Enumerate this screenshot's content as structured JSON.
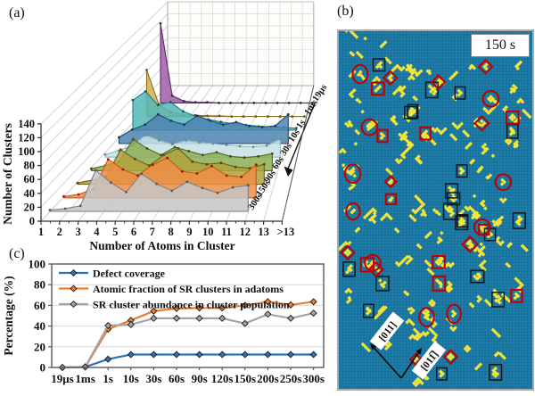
{
  "figure": {
    "panel_a_label": "(a)",
    "panel_b_label": "(b)",
    "panel_c_label": "(c)",
    "panel_b": {
      "time_label": "150 s",
      "direction_left": "[011]",
      "direction_right": "[011̅]",
      "colors": {
        "background": "#1B79A4",
        "texture_dark": "#15618B",
        "texture_light": "#2187B2",
        "adatom_yellow": "#F5E636",
        "annotation_black": "#151515",
        "annotation_red": "#C00000",
        "border_gray": "#ABABAB"
      },
      "annotations": {
        "black_rect_count": 21,
        "red_shape_count": 30
      },
      "free_cluster_count": 150,
      "seed": 20
    }
  },
  "chart_data": [
    {
      "type": "area",
      "subtype": "3d-waterfall",
      "title": "",
      "xlabel": "Number of Atoms in Cluster",
      "ylabel": "Number of Clusters",
      "x_ticks": [
        "1",
        "2",
        "3",
        "4",
        "5",
        "6",
        "7",
        "8",
        "9",
        "10",
        "11",
        "12",
        "13",
        ">13"
      ],
      "y_ticks": [
        0,
        20,
        40,
        60,
        80,
        100,
        120,
        140
      ],
      "ylim": [
        0,
        150
      ],
      "depth_order": "back-to-front",
      "series": [
        {
          "name": "19μs",
          "fill": "#9E5FA7",
          "stroke": "#5E2A66",
          "marker": "#4A2152",
          "values": [
            132,
            12,
            3,
            1,
            1,
            0,
            0,
            0,
            0,
            0,
            0,
            0,
            0,
            0
          ]
        },
        {
          "name": "1ms",
          "fill": "#D2B04C",
          "stroke": "#8A6D1F",
          "marker": "#6E5714",
          "values": [
            76,
            20,
            7,
            3,
            2,
            1,
            1,
            0,
            0,
            0,
            0,
            0,
            0,
            0
          ]
        },
        {
          "name": "1s",
          "fill": "#53B7B9",
          "stroke": "#1E7E80",
          "marker": "#14595B",
          "values": [
            48,
            62,
            40,
            45,
            30,
            22,
            17,
            13,
            10,
            8,
            6,
            5,
            4,
            3
          ]
        },
        {
          "name": "10s",
          "fill": "#4D83AF",
          "stroke": "#1F4E79",
          "marker": "#17395A",
          "values": [
            10,
            22,
            30,
            46,
            36,
            30,
            44,
            36,
            30,
            34,
            28,
            26,
            28,
            46
          ]
        },
        {
          "name": "30s",
          "fill": "#C6E2E6",
          "stroke": "#8FB8BE",
          "marker": "#5F8E96",
          "values": [
            4,
            10,
            18,
            34,
            26,
            20,
            26,
            23,
            21,
            19,
            17,
            16,
            18,
            28
          ]
        },
        {
          "name": "60s",
          "fill": "#8CAE53",
          "stroke": "#4F6A1E",
          "marker": "#3A4F15",
          "values": [
            3,
            8,
            14,
            48,
            34,
            24,
            36,
            30,
            24,
            28,
            22,
            20,
            22,
            26
          ]
        },
        {
          "name": "90s",
          "fill": "#B2A23E",
          "stroke": "#6E5F1C",
          "marker": "#524613",
          "values": [
            2,
            6,
            12,
            52,
            38,
            28,
            44,
            54,
            34,
            30,
            32,
            26,
            24,
            30
          ]
        },
        {
          "name": "150s",
          "fill": "#EF8E44",
          "stroke": "#C55A11",
          "marker": "#C00000",
          "values": [
            2,
            5,
            13,
            57,
            42,
            33,
            49,
            59,
            39,
            36,
            47,
            33,
            31,
            49
          ]
        },
        {
          "name": "300s",
          "fill": "#C6C6C6",
          "stroke": "#7F7F7F",
          "marker": "#595959",
          "values": [
            2,
            4,
            8,
            60,
            42,
            28,
            55,
            40,
            30,
            43,
            34,
            27,
            35,
            38
          ]
        }
      ]
    },
    {
      "type": "line",
      "title": "",
      "xlabel": "",
      "ylabel": "Percentage (%)",
      "categories": [
        "19μs",
        "1ms",
        "1s",
        "10s",
        "30s",
        "60s",
        "90s",
        "120s",
        "150s",
        "200s",
        "250s",
        "300s"
      ],
      "y_ticks": [
        0,
        20,
        40,
        60,
        80,
        100
      ],
      "ylim": [
        0,
        100
      ],
      "grid": "horizontal",
      "legend_position": "top-left-inside",
      "series": [
        {
          "name": "Defect coverage",
          "color": "#2E74B5",
          "values": [
            0,
            0.5,
            8,
            12.5,
            12.5,
            12.5,
            12.5,
            12.5,
            12.5,
            12.5,
            12.5,
            12.5
          ]
        },
        {
          "name": "Atomic fraction of SR clusters in adatoms",
          "color": "#ED7D31",
          "values": [
            0,
            0.5,
            37,
            45.5,
            54.5,
            57,
            57.5,
            57.5,
            60,
            63.5,
            60.5,
            63.5
          ]
        },
        {
          "name": "SR cluster abundance in cluster population",
          "color": "#A5A5A5",
          "values": [
            0,
            0.5,
            40.5,
            41.5,
            47.5,
            47.5,
            47.5,
            47.5,
            42.5,
            51.5,
            47.5,
            52.5
          ]
        }
      ]
    }
  ]
}
